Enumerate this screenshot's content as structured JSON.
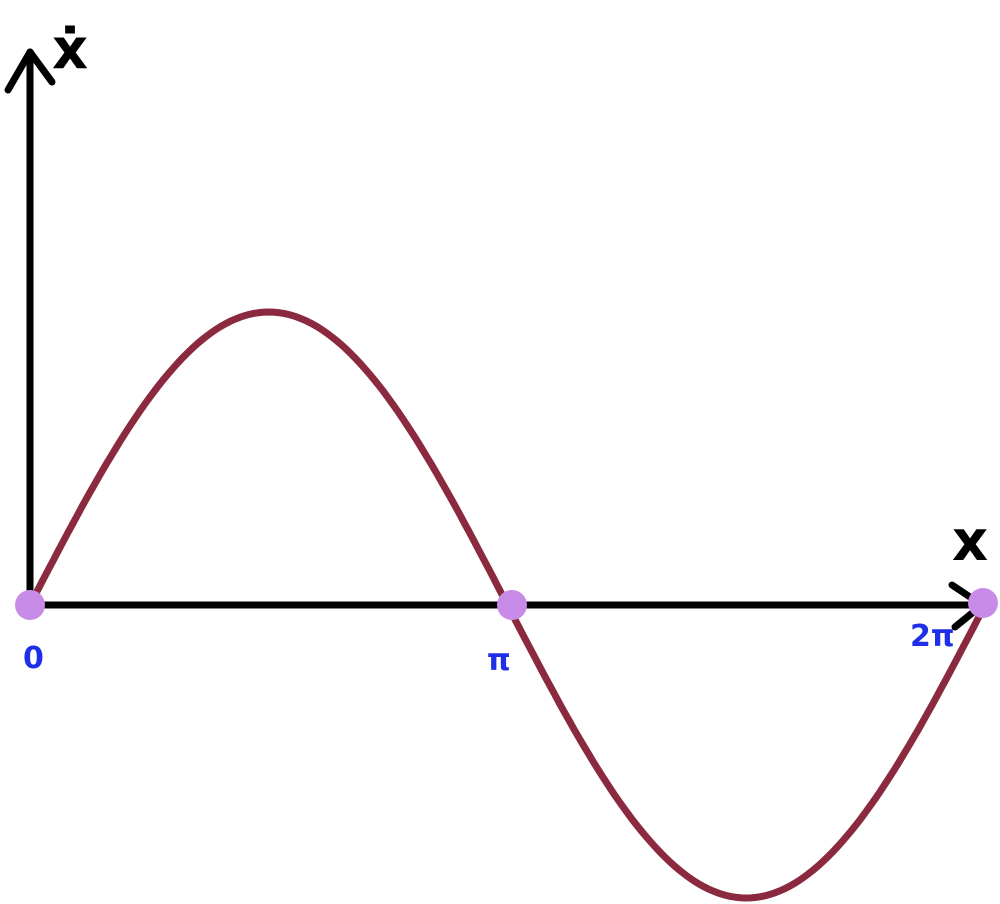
{
  "axes": {
    "y_label": "ẋ",
    "x_label": "x"
  },
  "points": [
    {
      "label": "0"
    },
    {
      "label": "π"
    },
    {
      "label": "2π"
    }
  ]
}
